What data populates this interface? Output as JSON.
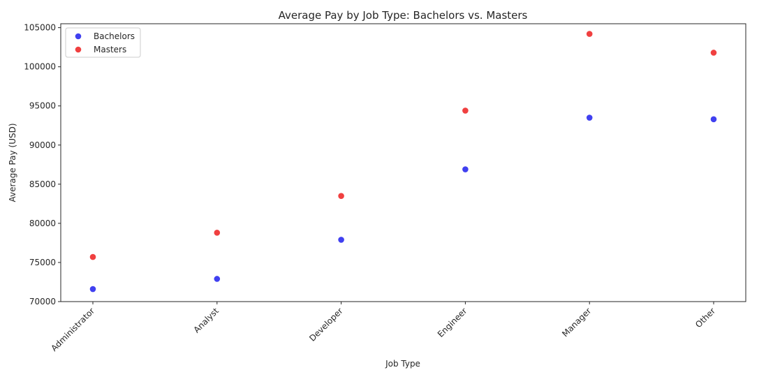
{
  "chart_data": {
    "type": "scatter",
    "title": "Average Pay by Job Type: Bachelors vs. Masters",
    "xlabel": "Job Type",
    "ylabel": "Average Pay (USD)",
    "categories": [
      "Administrator",
      "Analyst",
      "Developer",
      "Engineer",
      "Manager",
      "Other"
    ],
    "ylim": [
      70000,
      105500
    ],
    "yticks": [
      "70000",
      "75000",
      "80000",
      "85000",
      "90000",
      "95000",
      "100000",
      "105000"
    ],
    "grid": false,
    "legend_position": "top-left",
    "series": [
      {
        "name": "Bachelors",
        "color": "#4040f0",
        "values": [
          71600,
          72900,
          77900,
          86900,
          93500,
          93300
        ]
      },
      {
        "name": "Masters",
        "color": "#f04040",
        "values": [
          75700,
          78800,
          83500,
          94400,
          104200,
          101800
        ]
      }
    ]
  }
}
